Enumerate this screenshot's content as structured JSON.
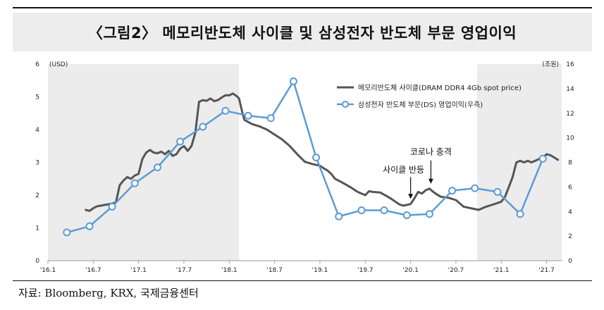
{
  "title": "〈그림2〉 메모리반도체 사이클 및 삼성전자 반도체 부문 영업이익",
  "source": "자료: Bloomberg, KRX, 국제금융센터",
  "chart_data": {
    "type": "line",
    "title": "〈그림2〉 메모리반도체 사이클 및 삼성전자 반도체 부문 영업이익",
    "x_ticks": [
      "'16.1",
      "'16.7",
      "'17.1",
      "'17.7",
      "'18.1",
      "'18.7",
      "'19.1",
      "'19.7",
      "'20.1",
      "'20.7",
      "'21.1",
      "'21.7"
    ],
    "xlim": [
      0,
      68
    ],
    "left_axis": {
      "label": "(USD)",
      "ylim": [
        0,
        6
      ],
      "ticks": [
        0,
        1,
        2,
        3,
        4,
        5,
        6
      ]
    },
    "right_axis": {
      "label": "(조원)",
      "ylim": [
        0,
        16
      ],
      "ticks": [
        0,
        2,
        4,
        6,
        8,
        10,
        12,
        14,
        16
      ]
    },
    "shaded_periods": [
      [
        0,
        25.3
      ],
      [
        56.8,
        68
      ]
    ],
    "series": [
      {
        "name": "메모리반도체 사이클(DRAM DDR4 4Gb spot price)",
        "axis": "left",
        "color": "#555555",
        "points": [
          [
            5,
            1.55
          ],
          [
            5.5,
            1.52
          ],
          [
            6,
            1.6
          ],
          [
            6.5,
            1.66
          ],
          [
            7,
            1.68
          ],
          [
            7.5,
            1.7
          ],
          [
            8,
            1.72
          ],
          [
            8.5,
            1.74
          ],
          [
            9,
            1.78
          ],
          [
            9.5,
            2.3
          ],
          [
            10,
            2.45
          ],
          [
            10.5,
            2.55
          ],
          [
            11,
            2.5
          ],
          [
            11.5,
            2.6
          ],
          [
            12,
            2.65
          ],
          [
            12.5,
            3.1
          ],
          [
            13,
            3.3
          ],
          [
            13.5,
            3.38
          ],
          [
            14,
            3.3
          ],
          [
            14.5,
            3.28
          ],
          [
            15,
            3.33
          ],
          [
            15.5,
            3.25
          ],
          [
            16,
            3.35
          ],
          [
            16.5,
            3.2
          ],
          [
            17,
            3.25
          ],
          [
            17.5,
            3.42
          ],
          [
            18,
            3.5
          ],
          [
            18.5,
            3.35
          ],
          [
            19,
            3.5
          ],
          [
            19.5,
            3.9
          ],
          [
            20,
            4.85
          ],
          [
            20.5,
            4.9
          ],
          [
            21,
            4.88
          ],
          [
            21.5,
            4.95
          ],
          [
            22,
            4.87
          ],
          [
            22.5,
            4.9
          ],
          [
            23,
            4.98
          ],
          [
            23.5,
            5.05
          ],
          [
            24,
            5.05
          ],
          [
            24.5,
            5.1
          ],
          [
            25,
            5.02
          ],
          [
            25.3,
            4.95
          ],
          [
            25.7,
            4.55
          ],
          [
            26,
            4.3
          ],
          [
            27,
            4.17
          ],
          [
            28,
            4.1
          ],
          [
            29,
            4.0
          ],
          [
            30,
            3.85
          ],
          [
            31,
            3.7
          ],
          [
            32,
            3.5
          ],
          [
            33,
            3.25
          ],
          [
            34,
            3.02
          ],
          [
            35,
            2.95
          ],
          [
            36,
            2.9
          ],
          [
            36.5,
            2.82
          ],
          [
            37,
            2.75
          ],
          [
            37.5,
            2.65
          ],
          [
            38,
            2.5
          ],
          [
            39,
            2.38
          ],
          [
            40,
            2.25
          ],
          [
            41,
            2.1
          ],
          [
            42,
            2.0
          ],
          [
            42.5,
            2.12
          ],
          [
            43,
            2.1
          ],
          [
            44,
            2.08
          ],
          [
            45,
            1.95
          ],
          [
            45.5,
            1.88
          ],
          [
            46,
            1.8
          ],
          [
            46.5,
            1.72
          ],
          [
            47,
            1.68
          ],
          [
            47.5,
            1.7
          ],
          [
            48,
            1.73
          ],
          [
            48.5,
            1.9
          ],
          [
            49,
            2.1
          ],
          [
            49.5,
            2.05
          ],
          [
            50,
            2.15
          ],
          [
            50.5,
            2.2
          ],
          [
            51,
            2.1
          ],
          [
            51.5,
            2.02
          ],
          [
            52,
            1.95
          ],
          [
            53,
            1.92
          ],
          [
            54,
            1.85
          ],
          [
            54.5,
            1.75
          ],
          [
            55,
            1.65
          ],
          [
            56,
            1.6
          ],
          [
            57,
            1.55
          ],
          [
            57.5,
            1.6
          ],
          [
            58,
            1.65
          ],
          [
            59,
            1.72
          ],
          [
            60,
            1.8
          ],
          [
            60.5,
            1.95
          ],
          [
            61,
            2.25
          ],
          [
            61.5,
            2.55
          ],
          [
            62,
            3.0
          ],
          [
            62.5,
            3.05
          ],
          [
            63,
            3.0
          ],
          [
            63.5,
            3.05
          ],
          [
            64,
            3.0
          ],
          [
            65,
            3.1
          ],
          [
            65.5,
            3.15
          ],
          [
            66,
            3.25
          ],
          [
            66.5,
            3.22
          ],
          [
            67,
            3.15
          ],
          [
            67.5,
            3.08
          ]
        ]
      },
      {
        "name": "삼성전자 반도체 부문(DS) 영업이익(우측)",
        "axis": "right",
        "color": "#5b9bd5",
        "points": [
          [
            2.5,
            2.3
          ],
          [
            5.5,
            2.8
          ],
          [
            8.5,
            4.4
          ],
          [
            11.5,
            6.3
          ],
          [
            14.5,
            7.6
          ],
          [
            17.5,
            9.7
          ],
          [
            20.5,
            10.9
          ],
          [
            23.5,
            12.2
          ],
          [
            26.5,
            11.8
          ],
          [
            29.5,
            11.6
          ],
          [
            32.5,
            14.6
          ],
          [
            35.5,
            8.4
          ],
          [
            38.5,
            3.6
          ],
          [
            41.5,
            4.1
          ],
          [
            44.5,
            4.1
          ],
          [
            47.5,
            3.7
          ],
          [
            50.5,
            3.8
          ],
          [
            53.5,
            5.7
          ],
          [
            56.5,
            5.9
          ],
          [
            59.5,
            5.6
          ],
          [
            62.5,
            3.8
          ],
          [
            65.5,
            8.3
          ]
        ]
      }
    ],
    "annotations": [
      {
        "text": "사이클 반등",
        "x": 48,
        "y": 1.78
      },
      {
        "text": "코로나 충격",
        "x": 50.5,
        "y": 2.2
      }
    ],
    "legend_position": "top-right",
    "grid": false
  }
}
